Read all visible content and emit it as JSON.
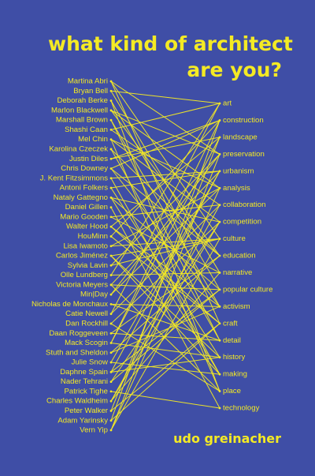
{
  "title": [
    "what kind of architect",
    "are you?"
  ],
  "names": [
    "Martina Abri",
    "Bryan Bell",
    "Deborah Berke",
    "Marlon Blackwell",
    "Marshall Brown",
    "Shashi Caan",
    "Mel Chin",
    "Karolina Czeczek",
    "Justin Diles",
    "Chris Downey",
    "J. Kent Fitzsimmons",
    "Antoni Folkers",
    "Nataly Gattegno",
    "Daniel Gillen",
    "Mario Gooden",
    "Walter Hood",
    "HouMinn",
    "Lisa Iwamoto",
    "Carlos Jiménez",
    "Sylvia Lavin",
    "Olle Lundberg",
    "Victoria Meyers",
    "Min|Day",
    "Nicholas de Monchaux",
    "Catie Newell",
    "Dan Rockhill",
    "Daan Roggeveen",
    "Mack Scogin",
    "Stuth and Sheldon",
    "Julie Snow",
    "Daphne Spain",
    "Nader Tehrani",
    "Patrick Tighe",
    "Charles Waldheim",
    "Peter Walker",
    "Adam Yarinsky",
    "Vern Yip"
  ],
  "categories": [
    "art",
    "construction",
    "landscape",
    "preservation",
    "urbanism",
    "analysis",
    "collaboration",
    "competition",
    "culture",
    "education",
    "narrative",
    "popular culture",
    "activism",
    "craft",
    "detail",
    "history",
    "making",
    "place",
    "technology"
  ],
  "author": "udo greinacher"
}
